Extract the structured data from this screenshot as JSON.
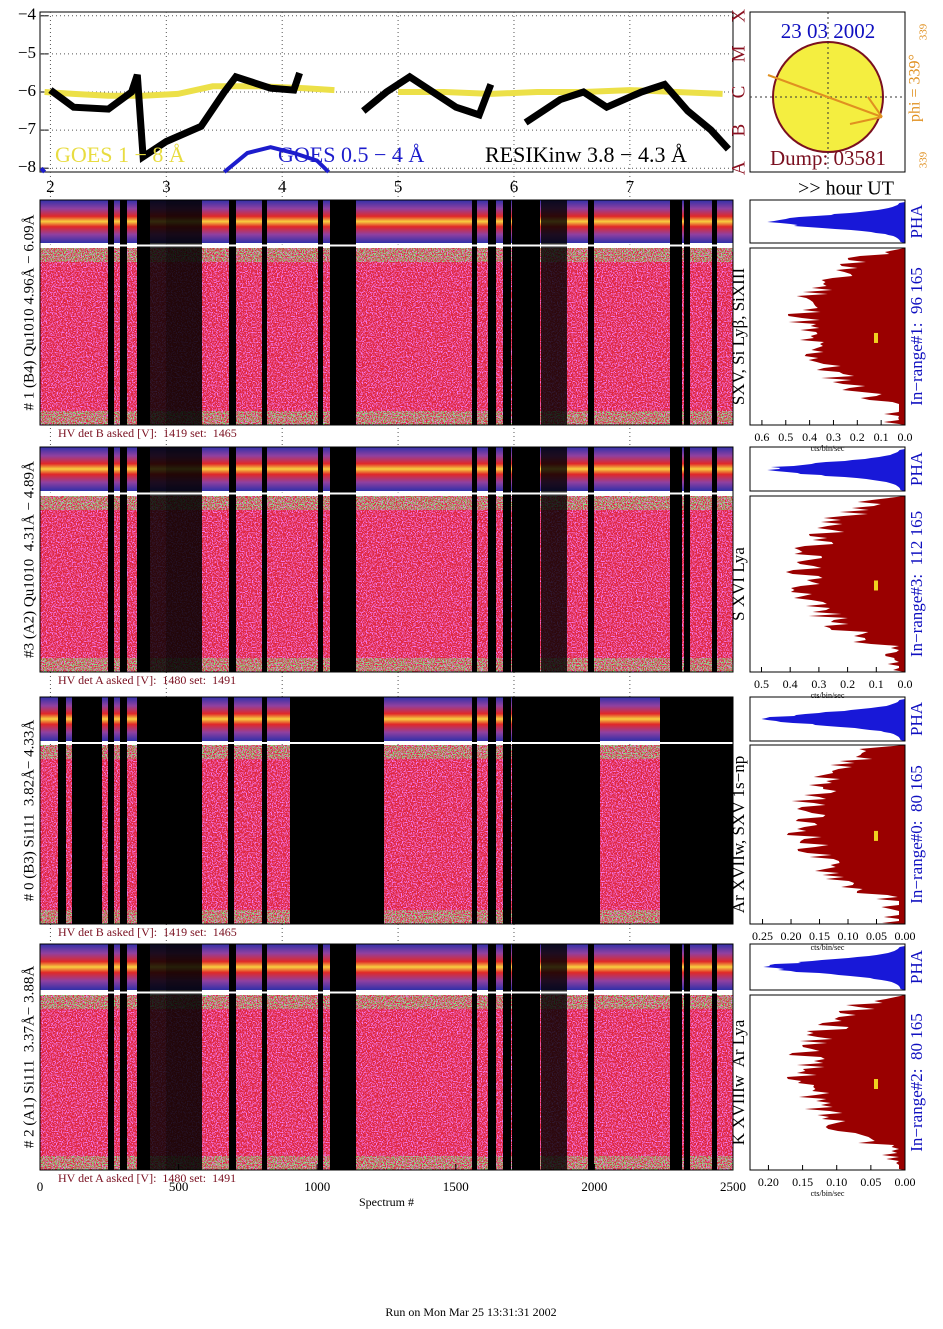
{
  "header": {
    "date": "23 03 2002",
    "dump": "Dump: 03581",
    "phi": "phi = 339°",
    "phi_sub": "339",
    "phi_small": "339",
    "hour_label": ">> hour UT",
    "footer": "Run on Mon Mar 25 13:31:31 2002"
  },
  "chart_data": [
    {
      "type": "line",
      "xlim": [
        1.91,
        7.89
      ],
      "xticks": [
        2,
        3,
        4,
        5,
        6,
        7
      ],
      "ylim": [
        -8.1,
        -3.9
      ],
      "yticks": [
        {
          "value": -4,
          "label": "−4"
        },
        {
          "value": -5,
          "label": "−5"
        },
        {
          "value": -6,
          "label": "−6"
        },
        {
          "value": -7,
          "label": "−7"
        },
        {
          "value": -8,
          "label": "−8"
        }
      ],
      "grid": true,
      "class_labels": [
        {
          "value": -8,
          "label": "A"
        },
        {
          "value": -7,
          "label": "B"
        },
        {
          "value": -6,
          "label": "C"
        },
        {
          "value": -5,
          "label": "M"
        },
        {
          "value": -4,
          "label": "X"
        }
      ],
      "series": [
        {
          "name": "GOES 1 − 8 Å",
          "color": "#ece048",
          "x": [
            1.95,
            2.2,
            2.5,
            2.8,
            3.1,
            3.4,
            3.8,
            4.2,
            4.45,
            4.6,
            5.0,
            5.4,
            5.8,
            6.2,
            6.6,
            7.0,
            7.4,
            7.8
          ],
          "values": [
            -6.0,
            -6.05,
            -6.1,
            -6.1,
            -6.05,
            -5.85,
            -5.85,
            -5.9,
            -5.95,
            null,
            -6.0,
            -6.0,
            -6.05,
            -6.0,
            -6.0,
            -5.95,
            -6.0,
            -6.05
          ]
        },
        {
          "name": "GOES 0.5 − 4 Å",
          "color": "#1c1ccc",
          "x": [
            1.92,
            1.95,
            3.3,
            3.5,
            3.7,
            3.9,
            4.1,
            4.3,
            4.4
          ],
          "values": [
            -8.0,
            -8.1,
            null,
            -8.1,
            -7.6,
            -7.45,
            -7.6,
            -7.8,
            -8.1
          ]
        },
        {
          "name": "RESIKinw 3.8 − 4.3 Å",
          "color": "#000000",
          "x": [
            2.0,
            2.2,
            2.5,
            2.7,
            2.75,
            2.8,
            3.0,
            3.3,
            3.5,
            3.6,
            3.9,
            4.1,
            4.15,
            4.3,
            4.7,
            4.9,
            5.1,
            5.4,
            5.5,
            5.6,
            5.7,
            5.8,
            5.9,
            6.1,
            6.4,
            6.6,
            6.8,
            7.1,
            7.3,
            7.5,
            7.7,
            7.85
          ],
          "values": [
            -5.95,
            -6.4,
            -6.45,
            -6.0,
            -5.55,
            -7.7,
            -7.3,
            -6.9,
            -6.0,
            -5.6,
            -5.9,
            -5.95,
            -5.5,
            null,
            -6.5,
            -6.0,
            -5.6,
            -6.2,
            -6.4,
            -6.5,
            -6.6,
            -5.8,
            null,
            -6.8,
            -6.2,
            -6.0,
            -6.4,
            -6.0,
            -5.8,
            -6.5,
            -7.0,
            -7.5
          ]
        }
      ]
    },
    {
      "type": "spectrogram",
      "detector_label": "# 1 (B4) Qu1010 4.96Å − 6.09Å",
      "line_label": "SXV, Si Lyβ, SiXIII",
      "hv_caption": "HV det B asked [V]:  1419 set:  1465",
      "pha_label": "PHA",
      "range_label": "In−range#1:  96 165",
      "hist_xlabel": "cts/bin/sec",
      "hist_xlim": [
        0.65,
        0
      ],
      "hist_xticks": [
        0.6,
        0.5,
        0.4,
        0.3,
        0.2,
        0.1,
        {
          "value": 0,
          "label": "0.0"
        }
      ]
    },
    {
      "type": "spectrogram",
      "detector_label": "#3 (A2) Qu1010  4.31Å − 4.89Å",
      "line_label": "S XVI Lya",
      "hv_caption": "HV det A asked [V]:  1480 set:  1491",
      "pha_label": "PHA",
      "range_label": "In−range#3:  112 165",
      "hist_xlabel": "cts/bin/sec",
      "hist_xlim": [
        0.54,
        0
      ],
      "hist_xticks": [
        0.5,
        0.4,
        0.3,
        0.2,
        0.1,
        {
          "value": 0,
          "label": "0.0"
        }
      ]
    },
    {
      "type": "spectrogram",
      "detector_label": "# 0 (B3) Si111  3.82Å− 4.33Å",
      "line_label": "Ar XVIIw, SXV 1s−np",
      "hv_caption": "HV det B asked [V]:  1419 set:  1465",
      "pha_label": "PHA",
      "range_label": "In−range#0:  80 165",
      "hist_xlabel": "cts/bin/sec",
      "hist_xlim": [
        0.272,
        0
      ],
      "hist_xticks": [
        0.25,
        {
          "value": 0.2,
          "label": "0.20"
        },
        0.15,
        {
          "value": 0.1,
          "label": "0.10"
        },
        0.05,
        {
          "value": 0,
          "label": "0.00"
        }
      ]
    },
    {
      "type": "spectrogram",
      "detector_label": "# 2 (A1) Si111  3.37Å− 3.88Å",
      "line_label": "K XVIIIw  Ar Lya",
      "hv_caption": "HV det A asked [V]:  1480 set:  1491",
      "pha_label": "PHA",
      "range_label": "In−range#2:  80 165",
      "hist_xlabel": "cts/bin/sec",
      "hist_xlim": [
        0.227,
        0
      ],
      "hist_xticks": [
        {
          "value": 0.2,
          "label": "0.20"
        },
        0.15,
        {
          "value": 0.1,
          "label": "0.10"
        },
        0.05,
        {
          "value": 0,
          "label": "0.00"
        }
      ],
      "xlim": [
        0,
        2500
      ],
      "xticks": [
        0,
        500,
        1000,
        1500,
        2000,
        2500
      ],
      "xlabel": "Spectrum #"
    }
  ]
}
